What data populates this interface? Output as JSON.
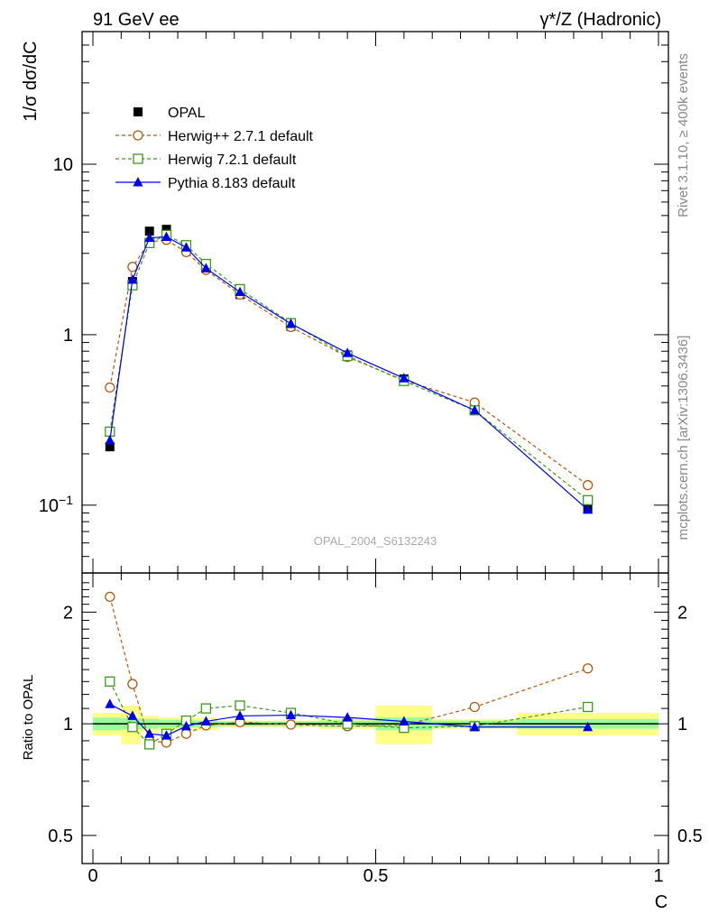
{
  "header": {
    "left": "91 GeV ee",
    "right": "γ*/Z (Hadronic)"
  },
  "side_text": {
    "rivet": "Rivet 3.1.10, ≥ 400k events",
    "site": "mcplots.cern.ch [arXiv:1306.3436]"
  },
  "watermark": "OPAL_2004_S6132243",
  "colors": {
    "data": "#000000",
    "herwigpp": "#b05a10",
    "herwig7": "#3a9a1a",
    "pythia": "#0000ee",
    "band_inner": "#99ff99",
    "band_outer": "#ffff88"
  },
  "chart_data": [
    {
      "type": "scatter",
      "ylabel": "1/σ dσ/dC",
      "yscale": "log",
      "xlim": [
        0,
        1
      ],
      "ylim": [
        0.04,
        60
      ],
      "y_tick_labels": [
        "10⁻¹",
        "1",
        "10"
      ],
      "legend_placement": "top-left",
      "x": [
        0.03,
        0.07,
        0.1,
        0.13,
        0.165,
        0.2,
        0.26,
        0.35,
        0.45,
        0.55,
        0.675,
        0.875
      ],
      "series": [
        {
          "name": "OPAL",
          "style": "data",
          "values": [
            0.22,
            2.05,
            4.05,
            4.15,
            3.3,
            2.45,
            1.72,
            1.12,
            0.76,
            0.55,
            0.365,
            0.095
          ]
        },
        {
          "name": "Herwig++ 2.7.1 default",
          "style": "herwigpp",
          "values": [
            0.49,
            2.5,
            3.5,
            3.6,
            3.05,
            2.4,
            1.72,
            1.11,
            0.74,
            0.54,
            0.4,
            0.131
          ]
        },
        {
          "name": "Herwig 7.2.1 default",
          "style": "herwig7",
          "values": [
            0.27,
            1.95,
            3.45,
            3.85,
            3.35,
            2.6,
            1.85,
            1.17,
            0.75,
            0.535,
            0.36,
            0.107
          ]
        },
        {
          "name": "Pythia 8.183 default",
          "style": "pythia",
          "values": [
            0.24,
            2.1,
            3.7,
            3.75,
            3.25,
            2.45,
            1.78,
            1.16,
            0.78,
            0.555,
            0.36,
            0.094
          ]
        }
      ]
    },
    {
      "type": "line",
      "ylabel": "Ratio to OPAL",
      "xlabel": "C",
      "yscale": "log",
      "xlim": [
        0,
        1
      ],
      "ylim": [
        0.42,
        2.55
      ],
      "x_tick_labels": [
        "0",
        "0.5",
        "1"
      ],
      "y_tick_labels": [
        "0.5",
        "1",
        "2"
      ],
      "x": [
        0.03,
        0.07,
        0.1,
        0.13,
        0.165,
        0.2,
        0.26,
        0.35,
        0.45,
        0.55,
        0.675,
        0.875
      ],
      "series": [
        {
          "name": "Herwig++ 2.7.1 default",
          "style": "herwigpp",
          "values": [
            2.2,
            1.28,
            0.9,
            0.89,
            0.94,
            0.99,
            1.01,
            0.995,
            0.985,
            0.99,
            1.11,
            1.41
          ]
        },
        {
          "name": "Herwig 7.2.1 default",
          "style": "herwig7",
          "values": [
            1.3,
            0.98,
            0.88,
            0.94,
            1.02,
            1.1,
            1.12,
            1.07,
            1.0,
            0.975,
            0.985,
            1.11
          ]
        },
        {
          "name": "Pythia 8.183 default",
          "style": "pythia",
          "values": [
            1.13,
            1.05,
            0.94,
            0.93,
            0.985,
            1.015,
            1.05,
            1.055,
            1.04,
            1.015,
            0.98,
            0.98
          ]
        }
      ],
      "uncertainty_bands": {
        "edges": [
          0.0,
          0.05,
          0.085,
          0.115,
          0.145,
          0.18,
          0.22,
          0.3,
          0.4,
          0.5,
          0.6,
          0.75,
          1.0
        ],
        "inner": [
          0.04,
          0.035,
          0.03,
          0.025,
          0.025,
          0.02,
          0.015,
          0.015,
          0.02,
          0.04,
          0.02,
          0.03
        ],
        "outer": [
          0.07,
          0.12,
          0.05,
          0.04,
          0.04,
          0.04,
          0.02,
          0.02,
          0.03,
          0.12,
          0.03,
          0.07
        ]
      }
    }
  ]
}
